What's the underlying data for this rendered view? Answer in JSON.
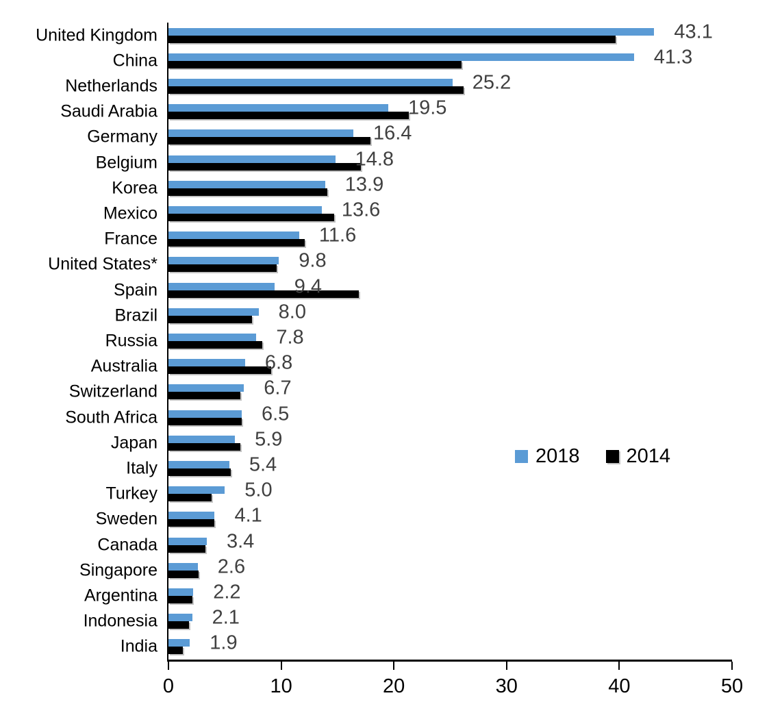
{
  "chart_data": {
    "type": "bar",
    "orientation": "horizontal",
    "title": "",
    "xlabel": "",
    "ylabel": "",
    "xlim": [
      0,
      50
    ],
    "xticks": [
      0,
      10,
      20,
      30,
      40,
      50
    ],
    "grid": false,
    "legend_position": "center-right",
    "background_color": "#ffffff",
    "axis_color": "#000000",
    "value_label_color": "#404040",
    "categories": [
      "United Kingdom",
      "China",
      "Netherlands",
      "Saudi Arabia",
      "Germany",
      "Belgium",
      "Korea",
      "Mexico",
      "France",
      "United States*",
      "Spain",
      "Brazil",
      "Russia",
      "Australia",
      "Switzerland",
      "South Africa",
      "Japan",
      "Italy",
      "Turkey",
      "Sweden",
      "Canada",
      "Singapore",
      "Argentina",
      "Indonesia",
      "India"
    ],
    "series": [
      {
        "name": "2018",
        "color": "#5B9BD5",
        "values": [
          43.1,
          41.3,
          25.2,
          19.5,
          16.4,
          14.8,
          13.9,
          13.6,
          11.6,
          9.8,
          9.4,
          8.0,
          7.8,
          6.8,
          6.7,
          6.5,
          5.9,
          5.4,
          5.0,
          4.1,
          3.4,
          2.6,
          2.2,
          2.1,
          1.9
        ],
        "labels": [
          "43.1",
          "41.3",
          "25.2",
          "19.5",
          "16.4",
          "14.8",
          "13.9",
          "13.6",
          "11.6",
          "9.8",
          "9.4",
          "8.0",
          "7.8",
          "6.8",
          "6.7",
          "6.5",
          "5.9",
          "5.4",
          "5.0",
          "4.1",
          "3.4",
          "2.6",
          "2.2",
          "2.1",
          "1.9"
        ]
      },
      {
        "name": "2014",
        "color": "#000000",
        "values": [
          39.7,
          26.0,
          26.2,
          21.3,
          17.9,
          17.1,
          14.1,
          14.7,
          12.1,
          9.6,
          16.9,
          7.4,
          8.3,
          9.1,
          6.4,
          6.5,
          6.4,
          5.5,
          3.8,
          4.1,
          3.3,
          2.7,
          2.1,
          1.8,
          1.3
        ]
      }
    ]
  }
}
